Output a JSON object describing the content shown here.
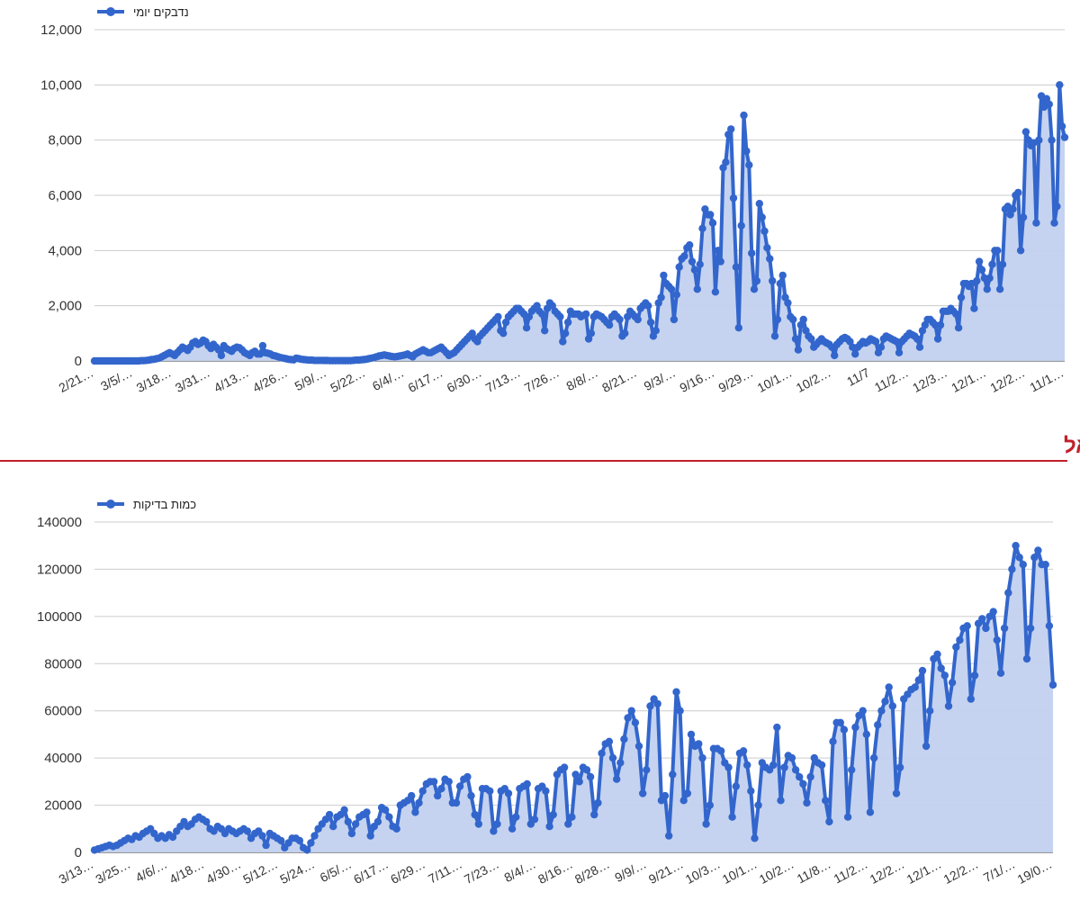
{
  "colors": {
    "line": "#3366cc",
    "area": "#c2d1ef",
    "heading": "#c0202a",
    "grid": "#cccccc"
  },
  "section_heading": "כמות בדיקות יומית בישראל",
  "chart_data": [
    {
      "type": "area",
      "legend": "נדבקים יומי",
      "ylim": [
        0,
        12000
      ],
      "yticks": [
        "0",
        "2,000",
        "4,000",
        "6,000",
        "8,000",
        "10,000",
        "12,000"
      ],
      "ytick_values": [
        0,
        2000,
        4000,
        6000,
        8000,
        10000,
        12000
      ],
      "xticks": [
        "2/21…",
        "3/5/…",
        "3/18…",
        "3/31…",
        "4/13…",
        "4/26…",
        "5/9/…",
        "5/22…",
        "6/4/…",
        "6/17…",
        "6/30…",
        "7/13…",
        "7/26…",
        "8/8/…",
        "8/21…",
        "9/3/…",
        "9/16…",
        "9/29…",
        "10/1…",
        "10/2…",
        "11/7",
        "11/2…",
        "12/3…",
        "12/1…",
        "12/2…",
        "11/1…"
      ],
      "grid": true,
      "legend_position": "top-left",
      "series": [
        {
          "values": [
            0,
            0,
            0,
            0,
            0,
            0,
            0,
            0,
            0,
            0,
            0,
            0,
            0,
            0,
            0,
            0,
            0,
            0,
            10,
            10,
            20,
            30,
            50,
            60,
            80,
            100,
            150,
            200,
            250,
            300,
            250,
            200,
            300,
            400,
            500,
            450,
            380,
            500,
            650,
            700,
            600,
            650,
            750,
            700,
            550,
            450,
            600,
            500,
            400,
            200,
            550,
            450,
            400,
            350,
            450,
            500,
            480,
            400,
            300,
            250,
            200,
            300,
            350,
            250,
            250,
            550,
            300,
            280,
            250,
            200,
            180,
            150,
            120,
            100,
            80,
            60,
            50,
            40,
            100,
            80,
            60,
            50,
            40,
            30,
            30,
            20,
            20,
            20,
            20,
            15,
            15,
            10,
            10,
            10,
            10,
            10,
            10,
            10,
            10,
            10,
            20,
            30,
            30,
            40,
            50,
            60,
            80,
            100,
            120,
            150,
            180,
            200,
            220,
            200,
            180,
            160,
            150,
            160,
            180,
            200,
            220,
            250,
            200,
            150,
            250,
            300,
            350,
            400,
            350,
            300,
            300,
            350,
            400,
            450,
            500,
            400,
            300,
            200,
            250,
            300,
            400,
            500,
            600,
            700,
            800,
            900,
            1000,
            800,
            700,
            900,
            1000,
            1100,
            1200,
            1300,
            1400,
            1500,
            1600,
            1100,
            1000,
            1400,
            1600,
            1700,
            1800,
            1900,
            1900,
            1800,
            1700,
            1200,
            1600,
            1800,
            1900,
            2000,
            1800,
            1700,
            1100,
            1900,
            2100,
            2000,
            1800,
            1700,
            1600,
            700,
            1000,
            1400,
            1800,
            1700,
            1700,
            1700,
            1600,
            1650,
            1700,
            800,
            1000,
            1600,
            1700,
            1650,
            1600,
            1500,
            1400,
            1300,
            1600,
            1700,
            1600,
            1500,
            900,
            1000,
            1600,
            1800,
            1700,
            1600,
            1500,
            1900,
            2000,
            2100,
            2000,
            1400,
            900,
            1100,
            2100,
            2300,
            3100,
            2800,
            2700,
            2600,
            1500,
            2400,
            3400,
            3700,
            3800,
            4100,
            4200,
            3600,
            3300,
            2600,
            3500,
            4800,
            5500,
            5300,
            5300,
            5000,
            2500,
            4000,
            3600,
            7000,
            7200,
            8200,
            8400,
            5900,
            3400,
            1200,
            4900,
            8900,
            7600,
            7100,
            3900,
            2600,
            2900,
            5700,
            5200,
            4700,
            4100,
            3700,
            2900,
            900,
            1500,
            2800,
            3100,
            2300,
            2100,
            1600,
            1500,
            800,
            400,
            1300,
            1500,
            1100,
            900,
            800,
            500,
            600,
            700,
            800,
            700,
            650,
            600,
            500,
            200,
            600,
            700,
            800,
            850,
            800,
            700,
            500,
            250,
            500,
            600,
            700,
            650,
            700,
            800,
            750,
            700,
            300,
            500,
            800,
            900,
            850,
            800,
            750,
            700,
            300,
            700,
            800,
            900,
            1000,
            950,
            900,
            800,
            500,
            1100,
            1300,
            1500,
            1500,
            1400,
            1300,
            800,
            1300,
            1800,
            1800,
            1800,
            1900,
            1800,
            1700,
            1200,
            2300,
            2800,
            2800,
            2700,
            2800,
            1900,
            2900,
            3600,
            3300,
            3000,
            2600,
            3000,
            3500,
            4000,
            4000,
            2600,
            3500,
            5500,
            5600,
            5300,
            5500,
            6000,
            6100,
            4000,
            5200,
            8300,
            8000,
            7800,
            7900,
            5000,
            8000,
            9600,
            9200,
            9500,
            9300,
            8000,
            5000,
            5600,
            10000,
            8500,
            8100
          ]
        }
      ]
    },
    {
      "type": "area",
      "legend": "כמות בדיקות",
      "ylim": [
        0,
        140000
      ],
      "yticks": [
        "0",
        "20000",
        "40000",
        "60000",
        "80000",
        "100000",
        "120000",
        "140000"
      ],
      "ytick_values": [
        0,
        20000,
        40000,
        60000,
        80000,
        100000,
        120000,
        140000
      ],
      "xticks": [
        "3/13…",
        "3/25…",
        "4/6/…",
        "4/18…",
        "4/30…",
        "5/12…",
        "5/24…",
        "6/5/…",
        "6/17…",
        "6/29…",
        "7/11…",
        "7/23…",
        "8/4/…",
        "8/16…",
        "8/28…",
        "9/9/…",
        "9/21…",
        "10/3…",
        "10/1…",
        "10/2…",
        "11/8…",
        "11/2…",
        "12/2…",
        "12/1…",
        "12/2…",
        "7/1/…",
        "19/0…"
      ],
      "grid": true,
      "legend_position": "top-left",
      "series": [
        {
          "values": [
            1000,
            1500,
            2000,
            2500,
            3000,
            2500,
            3000,
            4000,
            5000,
            6000,
            5500,
            7000,
            6500,
            8000,
            9000,
            10000,
            8000,
            6000,
            7000,
            6000,
            7500,
            6500,
            9000,
            11000,
            13000,
            11000,
            12000,
            14000,
            15000,
            14000,
            13000,
            10000,
            9000,
            11000,
            10000,
            8000,
            10000,
            9000,
            8000,
            9000,
            10000,
            9000,
            6000,
            8000,
            9000,
            7000,
            3000,
            8000,
            7000,
            6000,
            5000,
            2000,
            4000,
            6000,
            6000,
            5000,
            2000,
            1000,
            4000,
            7000,
            10000,
            12000,
            14000,
            16000,
            11000,
            15000,
            16000,
            18000,
            13000,
            8000,
            12000,
            15000,
            16000,
            17000,
            7000,
            11000,
            13000,
            19000,
            18000,
            15000,
            11000,
            10000,
            20000,
            21000,
            22000,
            24000,
            17000,
            21000,
            26000,
            29000,
            30000,
            30000,
            24000,
            27000,
            31000,
            30000,
            21000,
            21000,
            28000,
            31000,
            32000,
            24000,
            16000,
            12000,
            27000,
            27000,
            26000,
            9000,
            12000,
            26000,
            27000,
            25000,
            10000,
            15000,
            27000,
            28000,
            29000,
            12000,
            14000,
            27000,
            28000,
            26000,
            11000,
            16000,
            33000,
            35000,
            36000,
            12000,
            15000,
            33000,
            30000,
            36000,
            35000,
            32000,
            16000,
            21000,
            42000,
            46000,
            47000,
            40000,
            31000,
            38000,
            48000,
            57000,
            60000,
            55000,
            45000,
            25000,
            35000,
            62000,
            65000,
            63000,
            22000,
            24000,
            7000,
            33000,
            68000,
            60000,
            22000,
            25000,
            50000,
            45000,
            46000,
            40000,
            12000,
            20000,
            44000,
            44000,
            43000,
            38000,
            36000,
            15000,
            28000,
            42000,
            43000,
            37000,
            26000,
            6000,
            20000,
            38000,
            36000,
            35000,
            37000,
            53000,
            22000,
            36000,
            41000,
            40000,
            35000,
            32000,
            29000,
            21000,
            32000,
            40000,
            38000,
            37000,
            22000,
            13000,
            47000,
            55000,
            55000,
            52000,
            15000,
            35000,
            53000,
            58000,
            60000,
            50000,
            17000,
            40000,
            54000,
            60000,
            64000,
            70000,
            62000,
            25000,
            36000,
            65000,
            67000,
            69000,
            70000,
            73000,
            77000,
            45000,
            60000,
            82000,
            84000,
            78000,
            75000,
            62000,
            72000,
            87000,
            90000,
            95000,
            96000,
            65000,
            75000,
            97000,
            99000,
            95000,
            100000,
            102000,
            90000,
            76000,
            95000,
            110000,
            120000,
            130000,
            125000,
            122000,
            82000,
            95000,
            125000,
            128000,
            122000,
            122000,
            96000,
            71000
          ]
        }
      ]
    }
  ]
}
